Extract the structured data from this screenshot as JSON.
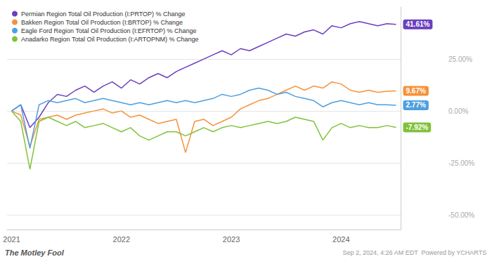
{
  "chart_data": {
    "type": "line",
    "categories": [
      "2021",
      null,
      null,
      null,
      null,
      null,
      null,
      null,
      null,
      null,
      null,
      null,
      "2022",
      null,
      null,
      null,
      null,
      null,
      null,
      null,
      null,
      null,
      null,
      null,
      "2023",
      null,
      null,
      null,
      null,
      null,
      null,
      null,
      null,
      null,
      null,
      null,
      "2024",
      null,
      null,
      null,
      null,
      null,
      null
    ],
    "series": [
      {
        "name": "Permian Region Total Oil Production (I:PRTOP) % Change",
        "color": "#6b3fbe",
        "values": [
          0,
          3,
          -8,
          -3,
          4,
          8,
          7,
          10,
          12,
          9,
          12,
          14,
          11,
          15,
          13,
          16,
          18,
          16,
          19,
          21,
          23,
          25,
          27,
          29,
          27,
          30,
          29,
          31,
          33,
          35,
          37,
          36,
          38,
          39,
          37,
          41,
          40,
          42,
          43,
          42,
          41,
          42,
          41.61
        ]
      },
      {
        "name": "Bakken Region Total Oil Production (I:BRTOP) % Change",
        "color": "#f5923b",
        "values": [
          0,
          -2,
          -17,
          -4,
          -3,
          -2,
          -4,
          -2,
          -1,
          0,
          1,
          -1,
          0,
          -3,
          -2,
          -4,
          -6,
          -5,
          -4,
          -20,
          -5,
          -4,
          -7,
          -5,
          -3,
          1,
          3,
          5,
          6,
          8,
          10,
          12,
          10,
          12,
          11,
          14,
          13,
          10,
          9,
          10,
          9,
          9.5,
          9.67
        ]
      },
      {
        "name": "Eagle Ford Region Total Oil Production (I:EFRTOP) % Change",
        "color": "#4d9fe0",
        "values": [
          0,
          3,
          -18,
          3,
          5,
          4,
          5,
          6,
          4,
          5,
          6,
          5,
          4,
          3,
          4,
          3,
          4,
          5,
          4,
          5,
          4,
          5,
          6,
          8,
          7,
          8,
          10,
          11,
          10,
          8,
          9,
          7,
          6,
          5,
          2,
          4,
          5,
          4,
          3,
          4,
          3,
          3,
          2.77
        ]
      },
      {
        "name": "Anadarko Region Total Oil Production (I:ARTOPNM) % Change",
        "color": "#80c23a",
        "values": [
          0,
          -5,
          -28,
          -5,
          -3,
          -5,
          -7,
          -5,
          -8,
          -7,
          -6,
          -8,
          -10,
          -8,
          -12,
          -14,
          -12,
          -10,
          -10,
          -12,
          -10,
          -8,
          -10,
          -8,
          -7,
          -8,
          -7,
          -6,
          -5,
          -6,
          -5,
          -3,
          -4,
          -5,
          -14,
          -8,
          -6,
          -8,
          -7,
          -8,
          -8,
          -7,
          -7.92
        ]
      }
    ],
    "ylim": [
      -57,
      50
    ],
    "yticks": [
      {
        "value": -50,
        "label": "-50.00%"
      },
      {
        "value": -25,
        "label": "-25.00%"
      },
      {
        "value": 0,
        "label": "0.00%"
      },
      {
        "value": 25,
        "label": "25.00%"
      }
    ],
    "grid": true,
    "legend": "upper left",
    "annotations": [
      {
        "text": "41.61%",
        "y": 41.61,
        "color": "#6b3fbe"
      },
      {
        "text": "9.67%",
        "y": 9.67,
        "color": "#f5923b"
      },
      {
        "text": "2.77%",
        "y": 2.77,
        "color": "#4d9fe0"
      },
      {
        "text": "-7.92%",
        "y": -7.92,
        "color": "#80c23a"
      },
      {
        "text": "The Motley Fool"
      },
      {
        "text": "Sep 2, 2024, 4:26 AM EDT  Powered by YCHARTS"
      }
    ]
  }
}
